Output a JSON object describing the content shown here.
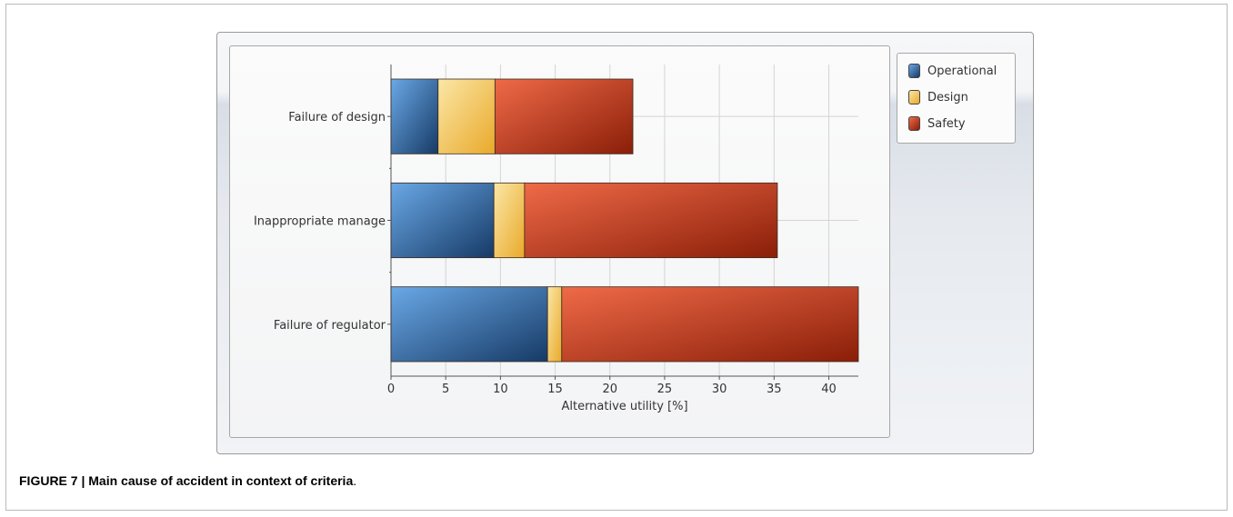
{
  "chart_data": {
    "type": "bar",
    "orientation": "horizontal",
    "stacked": true,
    "categories": [
      "Failure of design",
      "Inappropriate manage",
      "Failure of regulator"
    ],
    "series": [
      {
        "name": "Operational",
        "values": [
          4.3,
          9.4,
          14.3
        ],
        "color": "#2e5f9a"
      },
      {
        "name": "Design",
        "values": [
          5.2,
          2.8,
          1.3
        ],
        "color": "#f3c04a"
      },
      {
        "name": "Safety",
        "values": [
          12.6,
          23.1,
          27.1
        ],
        "color": "#c93a1e"
      }
    ],
    "xlabel": "Alternative utility [%]",
    "ylabel": "",
    "xlim": [
      0,
      42.7
    ],
    "xticks": [
      0,
      5,
      10,
      15,
      20,
      25,
      30,
      35,
      40
    ],
    "grid": true,
    "legend": "top-right"
  },
  "caption": {
    "bold": "FIGURE 7 | Main cause of accident in context of criteria",
    "tail": "."
  }
}
